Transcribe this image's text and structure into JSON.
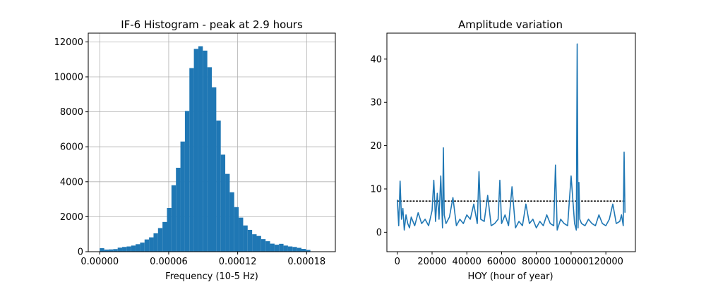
{
  "colors": {
    "bar": "#1f77b4",
    "line": "#1f77b4",
    "grid": "#b0b0b0",
    "mean_line": "#000000"
  },
  "chart_data": [
    {
      "type": "bar",
      "title": "IF-6 Histogram - peak at 2.9 hours",
      "xlabel": "Frequency (10-5 Hz)",
      "ylabel": "",
      "grid": true,
      "xlim": [
        -1e-05,
        0.000205
      ],
      "ylim": [
        0,
        12500
      ],
      "xticks": [
        0.0,
        6e-05,
        0.00012,
        0.00018
      ],
      "xtick_labels": [
        "0.00000",
        "0.00006",
        "0.00012",
        "0.00018"
      ],
      "yticks": [
        0,
        2000,
        4000,
        6000,
        8000,
        10000,
        12000
      ],
      "ytick_labels": [
        "0",
        "2000",
        "4000",
        "6000",
        "8000",
        "10000",
        "12000"
      ],
      "bin_start": 0.0,
      "bin_width": 3.9e-06,
      "values": [
        200,
        120,
        130,
        150,
        230,
        270,
        300,
        350,
        430,
        520,
        700,
        820,
        1050,
        1350,
        1700,
        2500,
        3800,
        4800,
        6300,
        8050,
        10500,
        11600,
        11750,
        11500,
        10550,
        9400,
        7500,
        5550,
        4450,
        3400,
        2550,
        1950,
        1500,
        1250,
        1000,
        900,
        720,
        600,
        460,
        400,
        450,
        350,
        300,
        270,
        220,
        160,
        100
      ]
    },
    {
      "type": "line",
      "title": "Amplitude variation",
      "xlabel": "HOY (hour of year)",
      "ylabel": "",
      "grid": false,
      "xlim": [
        -6000,
        137000
      ],
      "ylim": [
        -4.5,
        46
      ],
      "xticks": [
        0,
        20000,
        40000,
        60000,
        80000,
        100000,
        120000
      ],
      "xtick_labels": [
        "0",
        "20000",
        "40000",
        "60000",
        "80000",
        "100000",
        "120000"
      ],
      "yticks": [
        0,
        10,
        20,
        30,
        40
      ],
      "ytick_labels": [
        "0",
        "10",
        "20",
        "30",
        "40"
      ],
      "mean_line": {
        "y": 7.2,
        "x_start": 0,
        "x_end": 131000,
        "style": "dotted"
      },
      "series": [
        {
          "x": [
            0,
            800,
            1600,
            2400,
            3200,
            4000,
            5000,
            6000,
            7000,
            8000,
            9000,
            10000,
            12000,
            14000,
            16000,
            18000,
            20000,
            21000,
            22000,
            23000,
            24000,
            25000,
            26000,
            26500,
            27000,
            28000,
            30000,
            32000,
            34000,
            36000,
            38000,
            40000,
            42000,
            44000,
            46000,
            47000,
            48000,
            50000,
            52000,
            54000,
            56000,
            58000,
            59000,
            60000,
            62000,
            64000,
            66000,
            68000,
            70000,
            72000,
            74000,
            76000,
            78000,
            80000,
            82000,
            84000,
            86000,
            88000,
            90000,
            91000,
            92000,
            94000,
            96000,
            98000,
            100000,
            102000,
            103000,
            103500,
            104000,
            104500,
            105000,
            106000,
            108000,
            110000,
            112000,
            114000,
            116000,
            118000,
            120000,
            122000,
            124000,
            126000,
            128000,
            129000,
            130000,
            130500,
            131000
          ],
          "y": [
            7.5,
            1.5,
            11.8,
            3.0,
            5.5,
            0.5,
            4.0,
            2.0,
            1.0,
            3.5,
            2.5,
            1.5,
            4.5,
            2.0,
            3.0,
            1.5,
            5.0,
            12.0,
            2.5,
            9.0,
            3.0,
            13.0,
            1.0,
            19.5,
            4.0,
            2.0,
            3.5,
            8.0,
            1.5,
            3.0,
            2.0,
            4.0,
            3.0,
            6.5,
            2.0,
            14.0,
            3.0,
            2.5,
            8.5,
            1.5,
            2.0,
            3.0,
            12.0,
            2.0,
            4.0,
            1.5,
            10.5,
            1.0,
            2.5,
            1.5,
            6.5,
            2.0,
            3.0,
            1.0,
            2.5,
            1.5,
            4.0,
            2.0,
            1.5,
            15.5,
            0.5,
            3.0,
            2.0,
            1.5,
            13.0,
            2.0,
            0.5,
            43.5,
            1.0,
            11.5,
            3.0,
            2.0,
            1.5,
            3.0,
            2.0,
            1.5,
            4.0,
            2.0,
            1.5,
            3.0,
            6.5,
            2.0,
            2.5,
            4.0,
            1.5,
            18.5,
            4.5
          ]
        }
      ]
    }
  ]
}
